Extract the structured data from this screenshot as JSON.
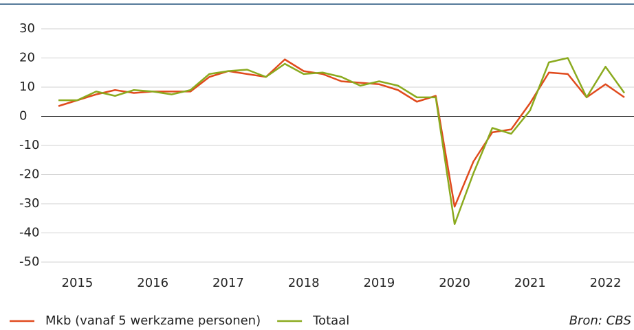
{
  "chart_data": {
    "type": "line",
    "categories": [
      null,
      "2015",
      null,
      null,
      null,
      "2016",
      null,
      null,
      null,
      "2017",
      null,
      null,
      null,
      "2018",
      null,
      null,
      null,
      "2019",
      null,
      null,
      null,
      "2020",
      null,
      null,
      null,
      "2021",
      null,
      null,
      null,
      "2022",
      null
    ],
    "series": [
      {
        "name": "Mkb (vanaf 5 werkzame personen)",
        "color": "#e04a1d",
        "values": [
          3.5,
          5.5,
          7.5,
          9,
          8,
          8.5,
          8.5,
          8.5,
          13.5,
          15.5,
          14.5,
          13.5,
          19.5,
          15.5,
          14.5,
          12,
          11.5,
          11,
          9,
          5,
          7,
          -31,
          -15.5,
          -5.5,
          -4.5,
          4.5,
          15,
          14.5,
          6.5,
          11,
          6.5
        ]
      },
      {
        "name": "Totaal",
        "color": "#8aaa1e",
        "values": [
          5.5,
          5.5,
          8.5,
          7,
          9,
          8.5,
          7.5,
          9,
          14.5,
          15.5,
          16,
          13.5,
          18,
          14.5,
          15,
          13.5,
          10.5,
          12,
          10.5,
          6.5,
          6.5,
          -37,
          -19.5,
          -4,
          -6,
          2,
          18.5,
          20,
          6.5,
          17,
          8
        ]
      }
    ],
    "ylim": [
      -50,
      30
    ],
    "yticks": [
      -50,
      -40,
      -30,
      -20,
      -10,
      0,
      10,
      20,
      30
    ],
    "grid": true,
    "source": "Bron: CBS"
  }
}
